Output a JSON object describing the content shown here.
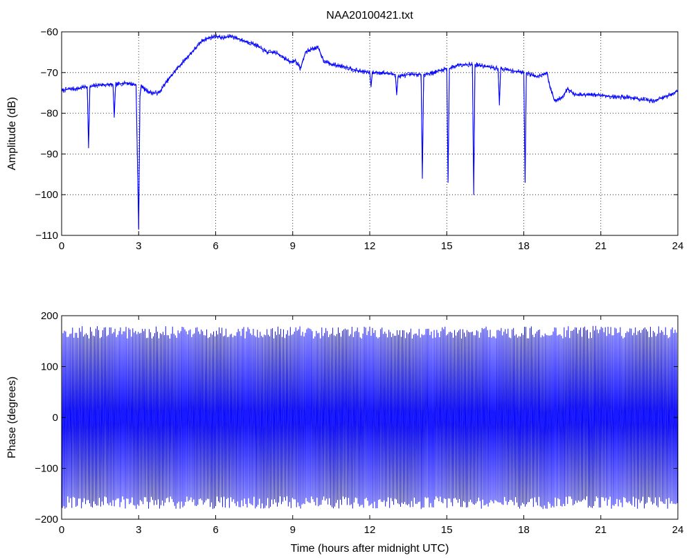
{
  "chart_data": [
    {
      "type": "line",
      "title": "NAA20100421.txt",
      "xlabel": "",
      "ylabel": "Amplitude (dB)",
      "xlim": [
        0,
        24
      ],
      "ylim": [
        -110,
        -60
      ],
      "xticks": [
        0,
        3,
        6,
        9,
        12,
        15,
        18,
        21,
        24
      ],
      "yticks": [
        -60,
        -70,
        -80,
        -90,
        -100,
        -110
      ],
      "grid": true,
      "color": "#0000ff",
      "series": [
        {
          "x": [
            0,
            0.3,
            0.6,
            0.9,
            1.0,
            1.05,
            1.1,
            1.5,
            2.0,
            2.05,
            2.1,
            2.5,
            2.9,
            3.0,
            3.05,
            3.1,
            3.2,
            3.5,
            3.8,
            4.0,
            4.5,
            5.0,
            5.5,
            6.0,
            6.3,
            6.6,
            7.0,
            7.5,
            8.0,
            8.3,
            8.6,
            8.9,
            9.1,
            9.3,
            9.5,
            9.8,
            10.0,
            10.2,
            10.5,
            11.0,
            11.5,
            12.0,
            12.05,
            12.1,
            12.5,
            13.0,
            13.05,
            13.1,
            13.5,
            14.0,
            14.05,
            14.1,
            14.5,
            15.0,
            15.05,
            15.1,
            15.5,
            16.0,
            16.05,
            16.1,
            16.5,
            17.0,
            17.05,
            17.1,
            17.5,
            18.0,
            18.05,
            18.1,
            18.5,
            18.9,
            19.0,
            19.2,
            19.5,
            19.7,
            20.0,
            20.5,
            21.0,
            21.5,
            22.0,
            22.5,
            23.0,
            23.5,
            24.0
          ],
          "y": [
            -74.5,
            -74,
            -74,
            -73.5,
            -73.5,
            -88.5,
            -73.5,
            -73,
            -73,
            -81,
            -73,
            -72.5,
            -73,
            -108.5,
            -76,
            -73,
            -74,
            -75,
            -75,
            -73,
            -69,
            -65.5,
            -62,
            -61,
            -61.5,
            -61,
            -62,
            -63,
            -65,
            -65,
            -66,
            -67.5,
            -67,
            -69,
            -65,
            -64,
            -64,
            -67,
            -68,
            -68.5,
            -69.5,
            -70,
            -73.5,
            -70,
            -70,
            -70.5,
            -75.5,
            -71,
            -70.5,
            -70.5,
            -96,
            -70.5,
            -70,
            -69,
            -97,
            -69,
            -68,
            -68,
            -100,
            -68,
            -68.5,
            -69,
            -78,
            -69,
            -69.5,
            -70,
            -97,
            -70,
            -71,
            -70,
            -73,
            -77,
            -76,
            -74,
            -75.5,
            -75.5,
            -75.5,
            -76,
            -76,
            -76.5,
            -77,
            -76,
            -74.5
          ]
        }
      ]
    },
    {
      "type": "line",
      "title": "",
      "xlabel": "Time (hours after midnight UTC)",
      "ylabel": "Phase (degrees)",
      "xlim": [
        0,
        24
      ],
      "ylim": [
        -200,
        200
      ],
      "xticks": [
        0,
        3,
        6,
        9,
        12,
        15,
        18,
        21,
        24
      ],
      "yticks": [
        200,
        100,
        0,
        -100,
        -200
      ],
      "grid": false,
      "color": "#0000ff",
      "series": [
        {
          "x": [
            0,
            24
          ],
          "y_min": -180,
          "y_max": 180
        }
      ]
    }
  ]
}
